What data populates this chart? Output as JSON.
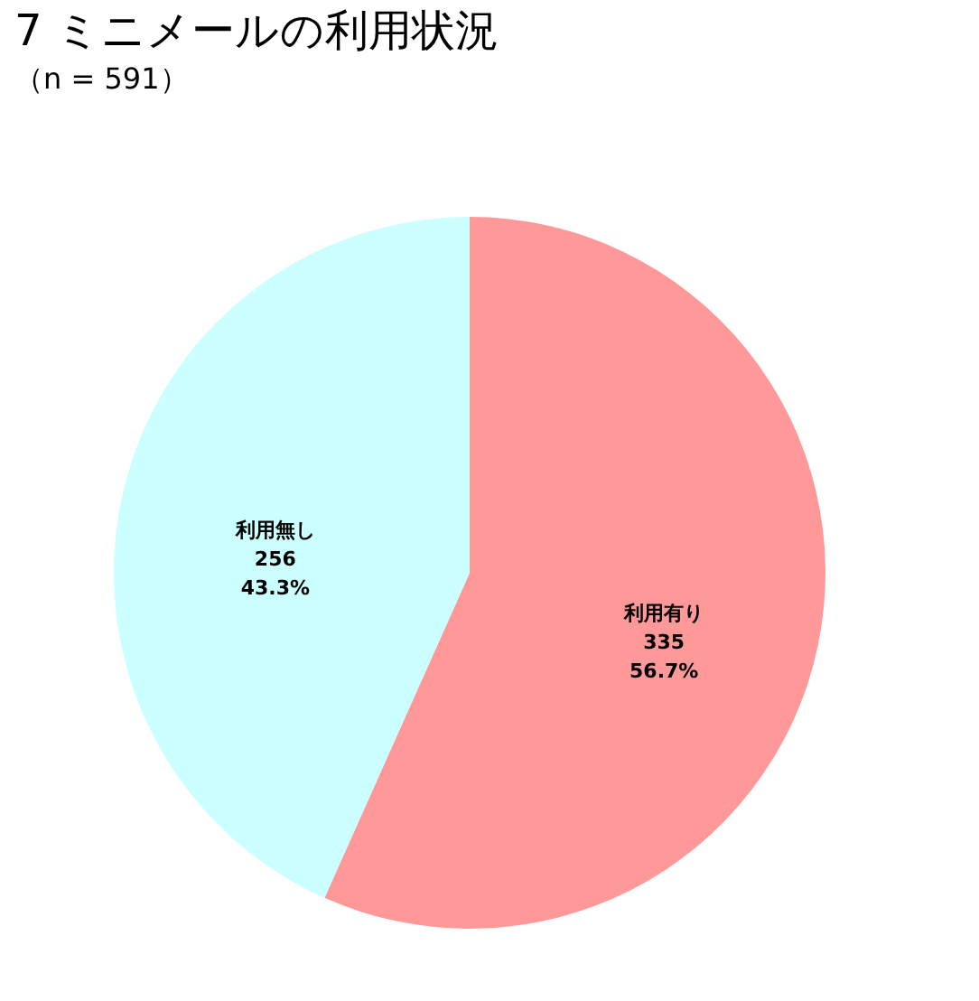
{
  "chart_data": {
    "type": "pie",
    "title": "7 ミニメールの利用状況",
    "subtitle": "（n = 591）",
    "categories": [
      "利用有り",
      "利用無し"
    ],
    "values": [
      335,
      256
    ],
    "colors": [
      "#ff9999",
      "#ccffff"
    ],
    "value_labels": [
      "335\n56.7%",
      "256\n43.3%"
    ],
    "legend": false
  }
}
